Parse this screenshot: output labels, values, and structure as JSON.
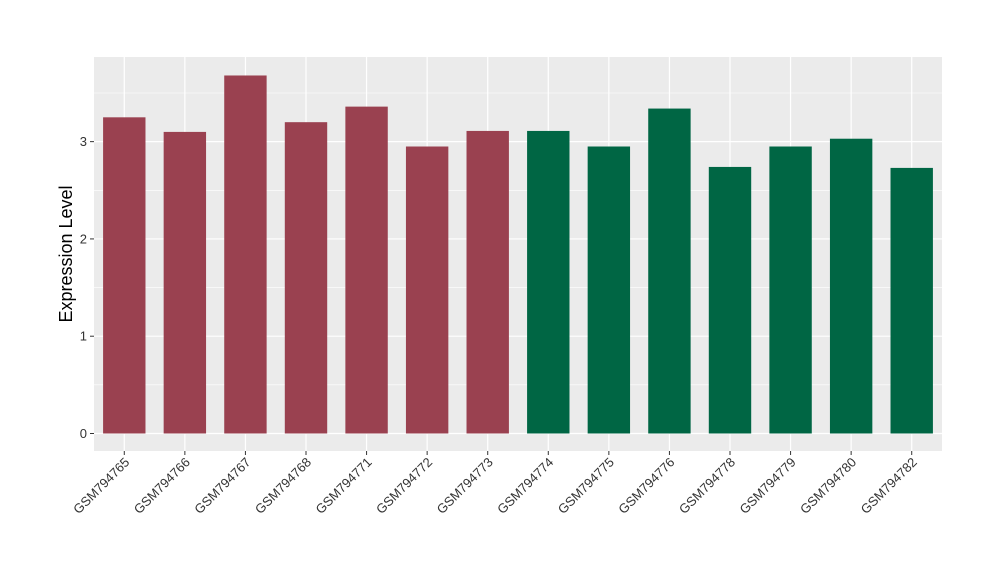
{
  "chart_data": {
    "type": "bar",
    "title": "",
    "xlabel": "",
    "ylabel": "Expression Level",
    "ylim": [
      -0.18,
      3.87
    ],
    "yticks": [
      0,
      1,
      2,
      3
    ],
    "grid": true,
    "legend": "none",
    "categories": [
      "GSM794765",
      "GSM794766",
      "GSM794767",
      "GSM794768",
      "GSM794771",
      "GSM794772",
      "GSM794773",
      "GSM794774",
      "GSM794775",
      "GSM794776",
      "GSM794778",
      "GSM794779",
      "GSM794780",
      "GSM794782"
    ],
    "values": [
      3.25,
      3.1,
      3.68,
      3.2,
      3.36,
      2.95,
      3.11,
      3.11,
      2.95,
      3.34,
      2.74,
      2.95,
      3.03,
      2.73
    ],
    "groups": [
      "red",
      "red",
      "red",
      "red",
      "red",
      "red",
      "red",
      "green",
      "green",
      "green",
      "green",
      "green",
      "green",
      "green"
    ],
    "colors": {
      "red": "#9A4150",
      "green": "#006644",
      "panel": "#EBEBEB",
      "grid": "#FFFFFF"
    }
  }
}
